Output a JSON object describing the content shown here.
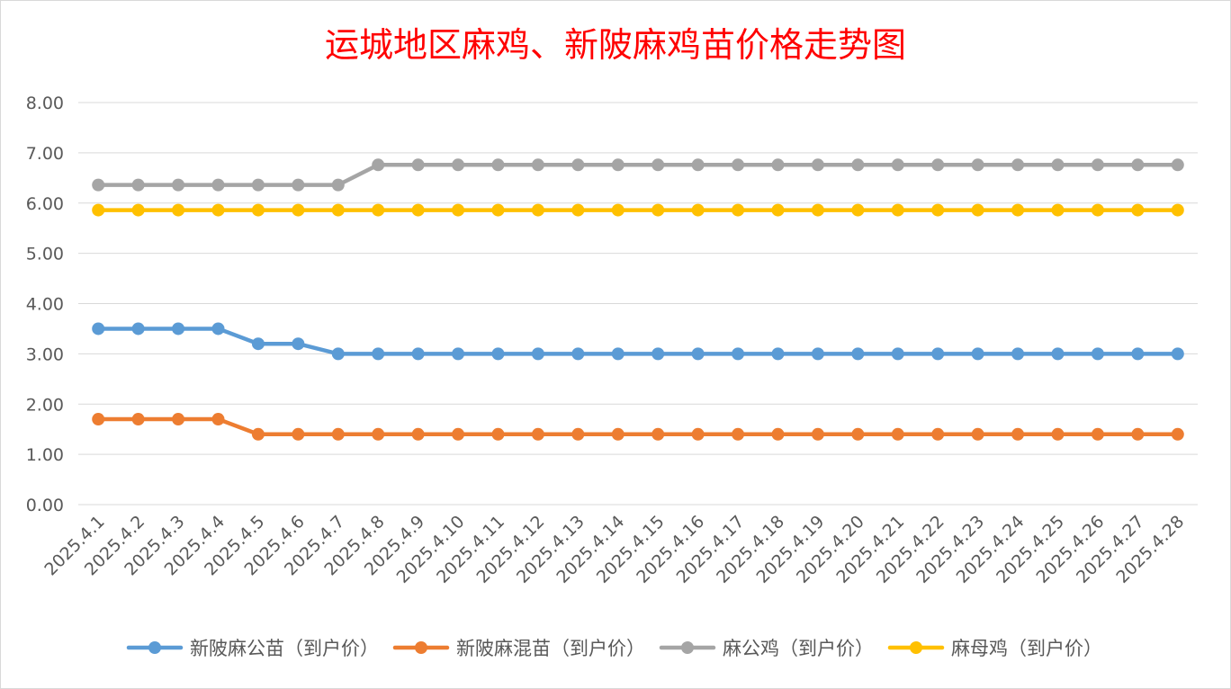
{
  "chart_data": {
    "type": "line",
    "title": "运城地区麻鸡、新陂麻鸡苗价格走势图",
    "xlabel": "",
    "ylabel": "",
    "ylim": [
      0,
      8
    ],
    "y_ticks": [
      "0.00",
      "1.00",
      "2.00",
      "3.00",
      "4.00",
      "5.00",
      "6.00",
      "7.00",
      "8.00"
    ],
    "grid": true,
    "legend_position": "bottom",
    "categories": [
      "2025.4.1",
      "2025.4.2",
      "2025.4.3",
      "2025.4.4",
      "2025.4.5",
      "2025.4.6",
      "2025.4.7",
      "2025.4.8",
      "2025.4.9",
      "2025.4.10",
      "2025.4.11",
      "2025.4.12",
      "2025.4.13",
      "2025.4.14",
      "2025.4.15",
      "2025.4.16",
      "2025.4.17",
      "2025.4.18",
      "2025.4.19",
      "2025.4.20",
      "2025.4.21",
      "2025.4.22",
      "2025.4.23",
      "2025.4.24",
      "2025.4.25",
      "2025.4.26",
      "2025.4.27",
      "2025.4.28"
    ],
    "series": [
      {
        "name": "新陂麻公苗（到户价）",
        "color": "#5b9bd5",
        "values": [
          3.5,
          3.5,
          3.5,
          3.5,
          3.2,
          3.2,
          3.0,
          3.0,
          3.0,
          3.0,
          3.0,
          3.0,
          3.0,
          3.0,
          3.0,
          3.0,
          3.0,
          3.0,
          3.0,
          3.0,
          3.0,
          3.0,
          3.0,
          3.0,
          3.0,
          3.0,
          3.0,
          3.0
        ]
      },
      {
        "name": "新陂麻混苗（到户价）",
        "color": "#ed7d31",
        "values": [
          1.7,
          1.7,
          1.7,
          1.7,
          1.4,
          1.4,
          1.4,
          1.4,
          1.4,
          1.4,
          1.4,
          1.4,
          1.4,
          1.4,
          1.4,
          1.4,
          1.4,
          1.4,
          1.4,
          1.4,
          1.4,
          1.4,
          1.4,
          1.4,
          1.4,
          1.4,
          1.4,
          1.4
        ]
      },
      {
        "name": "麻公鸡（到户价）",
        "color": "#a5a5a5",
        "values": [
          6.36,
          6.36,
          6.36,
          6.36,
          6.36,
          6.36,
          6.36,
          6.76,
          6.76,
          6.76,
          6.76,
          6.76,
          6.76,
          6.76,
          6.76,
          6.76,
          6.76,
          6.76,
          6.76,
          6.76,
          6.76,
          6.76,
          6.76,
          6.76,
          6.76,
          6.76,
          6.76,
          6.76
        ]
      },
      {
        "name": "麻母鸡（到户价）",
        "color": "#ffc000",
        "values": [
          5.86,
          5.86,
          5.86,
          5.86,
          5.86,
          5.86,
          5.86,
          5.86,
          5.86,
          5.86,
          5.86,
          5.86,
          5.86,
          5.86,
          5.86,
          5.86,
          5.86,
          5.86,
          5.86,
          5.86,
          5.86,
          5.86,
          5.86,
          5.86,
          5.86,
          5.86,
          5.86,
          5.86
        ]
      }
    ]
  }
}
